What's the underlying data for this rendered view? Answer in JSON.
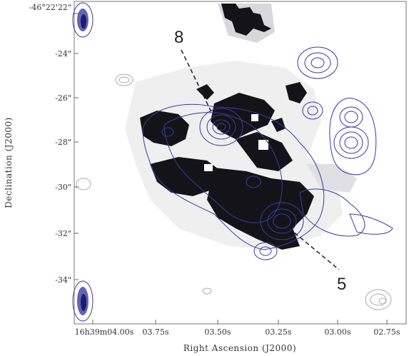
{
  "figure": {
    "xlabel": "Right Ascension (J2000)",
    "ylabel": "Declination (J2000)",
    "x_ticks": [
      "16h39m04.00s",
      "03.75s",
      "03.50s",
      "03.25s",
      "03.00s",
      "02.75s"
    ],
    "y_ticks": [
      "-46°22'22\"",
      "-24\"",
      "-26\"",
      "-28\"",
      "-30\"",
      "-32\"",
      "-34\""
    ],
    "markers": [
      "8",
      "5"
    ],
    "colors": {
      "contour": "#3a3aa0",
      "grey_contour": "#aaaaaa",
      "emission": "#141418",
      "axis": "#666666"
    }
  }
}
